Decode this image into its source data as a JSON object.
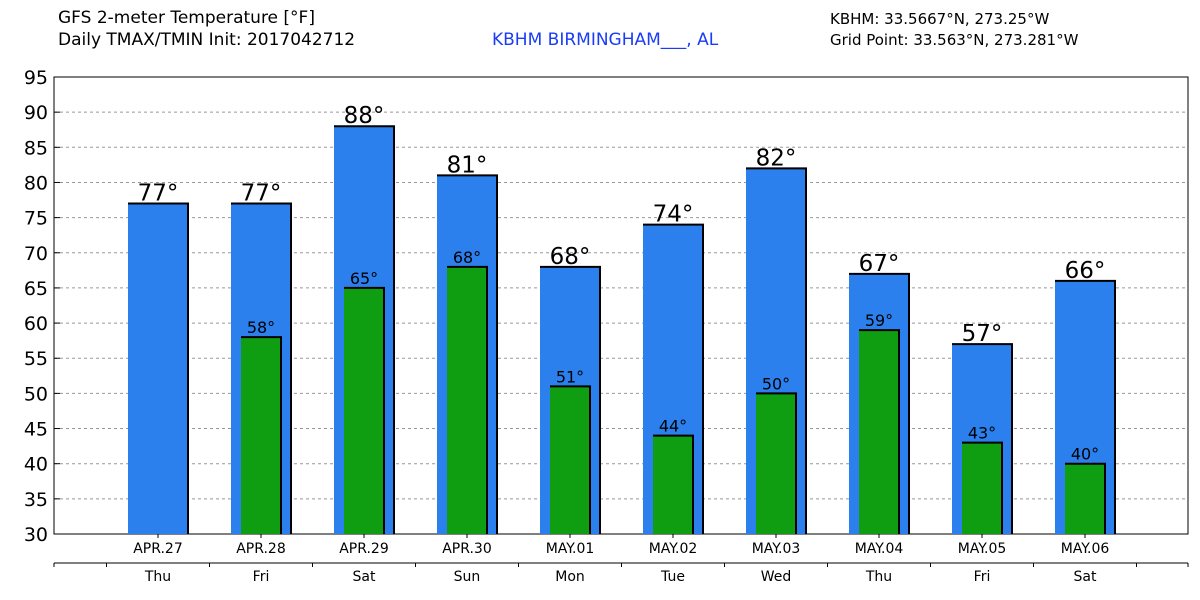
{
  "header": {
    "title_line1": "GFS 2-meter Temperature [°F]",
    "title_line2": "Daily TMAX/TMIN Init: 2017042712",
    "station": "KBHM BIRMINGHAM___, AL",
    "coords_line1": "KBHM: 33.5667°N, 273.25°W",
    "coords_line2": "Grid Point: 33.563°N, 273.281°W"
  },
  "colors": {
    "tmax_bar": "#2b80ee",
    "tmin_bar": "#0f9e12",
    "station_text": "#1a3cf5",
    "grid": "#999999"
  },
  "chart_data": {
    "type": "bar",
    "categories": [
      "APR.27",
      "APR.28",
      "APR.29",
      "APR.30",
      "MAY.01",
      "MAY.02",
      "MAY.03",
      "MAY.04",
      "MAY.05",
      "MAY.06"
    ],
    "weekdays": [
      "Thu",
      "Fri",
      "Sat",
      "Sun",
      "Mon",
      "Tue",
      "Wed",
      "Thu",
      "Fri",
      "Sat"
    ],
    "series": [
      {
        "name": "TMAX",
        "values": [
          77,
          77,
          88,
          81,
          68,
          74,
          82,
          67,
          57,
          66
        ]
      },
      {
        "name": "TMIN",
        "values": [
          null,
          58,
          65,
          68,
          51,
          44,
          50,
          59,
          43,
          40
        ]
      }
    ],
    "max_labels": [
      "77°",
      "77°",
      "88°",
      "81°",
      "68°",
      "74°",
      "82°",
      "67°",
      "57°",
      "66°"
    ],
    "min_labels": [
      "",
      "58°",
      "65°",
      "68°",
      "51°",
      "44°",
      "50°",
      "59°",
      "43°",
      "40°"
    ],
    "y_ticks": [
      30,
      35,
      40,
      45,
      50,
      55,
      60,
      65,
      70,
      75,
      80,
      85,
      90,
      95
    ],
    "ylim": [
      30,
      95
    ],
    "grid": true,
    "title": "GFS 2-meter Temperature [°F]",
    "xlabel": "",
    "ylabel": ""
  }
}
